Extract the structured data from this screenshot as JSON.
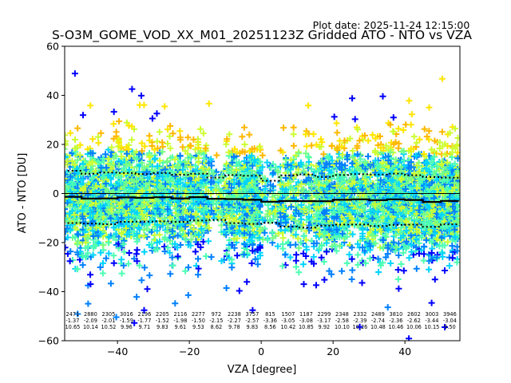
{
  "plot_date": "Plot date: 2025-11-24 12:15:00",
  "chart_data": {
    "type": "scatter",
    "title": "S-O3M_GOME_VOD_XX_M01_20251123Z Gridded ATO - NTO vs VZA",
    "xlabel": "VZA [degree]",
    "ylabel": "ATO - NTO [DU]",
    "xlim": [
      -54.7,
      55.3
    ],
    "ylim": [
      -60,
      60
    ],
    "xticks": [
      -40,
      -20,
      0,
      20,
      40
    ],
    "xtick_labels": [
      "−40",
      "−20",
      "0",
      "20",
      "40"
    ],
    "yticks": [
      60,
      40,
      20,
      0,
      -20,
      -40,
      -60
    ],
    "ytick_labels": [
      "60",
      "40",
      "20",
      "0",
      "−20",
      "−40",
      "−60"
    ],
    "grid": false,
    "zero_line": 0,
    "bin_width": 5,
    "bin_centers": [
      -52.5,
      -47.5,
      -42.5,
      -37.5,
      -32.5,
      -27.5,
      -22.5,
      -17.5,
      -12.5,
      -7.5,
      -2.5,
      2.5,
      7.5,
      12.5,
      17.5,
      22.5,
      27.5,
      32.5,
      37.5,
      42.5,
      47.5,
      52.5
    ],
    "bin_stats": {
      "count": [
        "2471",
        "2880",
        "2305",
        "3016",
        "2196",
        "2205",
        "2116",
        "2277",
        "972",
        "2238",
        "3757",
        "815",
        "1507",
        "1187",
        "2299",
        "2348",
        "2332",
        "2489",
        "3810",
        "2602",
        "3003",
        "3946"
      ],
      "mean": [
        "-1.37",
        "-2.09",
        "-2.01",
        "-1.59",
        "-1.77",
        "-1.52",
        "-1.98",
        "-1.50",
        "-2.15",
        "-2.27",
        "-2.57",
        "-3.36",
        "-3.05",
        "-3.08",
        "-3.17",
        "-2.58",
        "-2.39",
        "-2.74",
        "-2.36",
        "-2.62",
        "-3.44",
        "-3.04"
      ],
      "std": [
        "10.65",
        "10.14",
        "10.52",
        "9.96",
        "9.71",
        "9.83",
        "9.61",
        "9.53",
        "8.62",
        "9.78",
        "9.83",
        "8.56",
        "10.42",
        "10.85",
        "9.92",
        "10.10",
        "10.26",
        "10.48",
        "10.46",
        "10.06",
        "10.15",
        "9.50"
      ]
    },
    "series": [
      {
        "name": "mean",
        "style": "solid-step",
        "color": "#000000"
      },
      {
        "name": "mean + std",
        "style": "dotted-step",
        "color": "#000000"
      },
      {
        "name": "mean - std",
        "style": "dotted-step",
        "color": "#000000"
      }
    ],
    "marker": "+",
    "colormap": [
      "#0000ff",
      "#0080ff",
      "#00d4ff",
      "#4dffb3",
      "#76ff84",
      "#ccff32",
      "#ffe600",
      "#ffb800"
    ]
  }
}
